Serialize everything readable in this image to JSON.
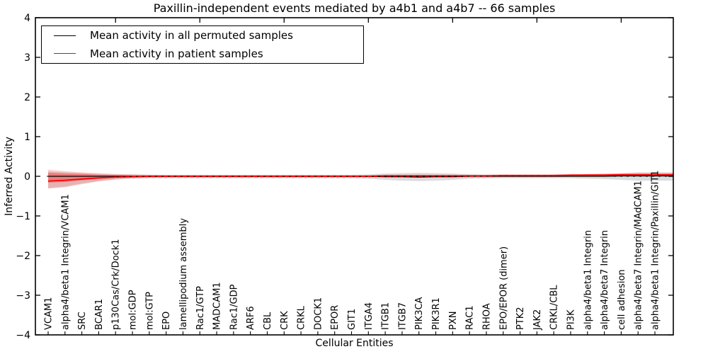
{
  "chart_data": {
    "type": "line",
    "title": "Paxillin-independent events mediated by a4b1 and a4b7 -- 66 samples",
    "xlabel": "Cellular Entities",
    "ylabel": "Inferred Activity",
    "ylim": [
      -4,
      4
    ],
    "yticks": [
      -4,
      -3,
      -2,
      -1,
      0,
      1,
      2,
      3,
      4
    ],
    "xticks_major": [
      5,
      10,
      15,
      20,
      25,
      30,
      35
    ],
    "grid": false,
    "legend_position": "upper left",
    "categories": [
      "VCAM1",
      "alpha4/beta1 Integrin/VCAM1",
      "SRC",
      "BCAR1",
      "p130Cas/Crk/Dock1",
      "mol:GDP",
      "mol:GTP",
      "EPO",
      "lamellipodium assembly",
      "Rac1/GTP",
      "MADCAM1",
      "Rac1/GDP",
      "ARF6",
      "CBL",
      "CRK",
      "CRKL",
      "DOCK1",
      "EPOR",
      "GIT1",
      "ITGA4",
      "ITGB1",
      "ITGB7",
      "PIK3CA",
      "PIK3R1",
      "PXN",
      "RAC1",
      "RHOA",
      "EPO/EPOR (dimer)",
      "PTK2",
      "JAK2",
      "CRKL/CBL",
      "PI3K",
      "alpha4/beta1 Integrin",
      "alpha4/beta7 Integrin",
      "cell adhesion",
      "alpha4/beta7 Integrin/MAdCAM1",
      "alpha4/beta1 Integrin/Paxillin/GIT1"
    ],
    "legend": [
      {
        "label": "Mean activity in all permuted samples",
        "color": "#000000"
      },
      {
        "label": "Mean activity in patient samples",
        "color": "#ff0000"
      }
    ],
    "series": [
      {
        "name": "Mean activity in all permuted samples",
        "color": "#000000",
        "values": [
          0,
          0,
          0,
          0,
          0,
          0,
          0,
          0,
          0,
          0,
          0,
          0,
          0,
          0,
          0,
          0,
          0,
          0,
          0,
          0,
          -0.01,
          -0.01,
          -0.02,
          -0.01,
          -0.01,
          0,
          0,
          0,
          0,
          0,
          0,
          0,
          0,
          0,
          0.01,
          0.01,
          0.01
        ]
      },
      {
        "name": "Mean activity in patient samples",
        "color": "#ff0000",
        "values": [
          -0.12,
          -0.1,
          -0.07,
          -0.04,
          -0.02,
          -0.01,
          0,
          0,
          0,
          0,
          0,
          0,
          0,
          0,
          0,
          0,
          0,
          0,
          0,
          0,
          0.01,
          0.01,
          0.01,
          0.01,
          0.01,
          0.01,
          0.01,
          0.02,
          0.02,
          0.02,
          0.02,
          0.03,
          0.03,
          0.03,
          0.04,
          0.04,
          0.04
        ]
      }
    ],
    "bands": [
      {
        "name": "permuted-std-band",
        "color": "#8c8c8c",
        "opacity": 0.3,
        "upper": [
          0.12,
          0.1,
          0.08,
          0.06,
          0.05,
          0.05,
          0.04,
          0.04,
          0.04,
          0.04,
          0.04,
          0.04,
          0.04,
          0.04,
          0.04,
          0.04,
          0.04,
          0.04,
          0.04,
          0.05,
          0.07,
          0.08,
          0.09,
          0.08,
          0.07,
          0.05,
          0.04,
          0.04,
          0.04,
          0.04,
          0.04,
          0.04,
          0.05,
          0.06,
          0.08,
          0.1,
          0.1
        ],
        "lower": [
          -0.3,
          -0.26,
          -0.18,
          -0.12,
          -0.08,
          -0.06,
          -0.05,
          -0.05,
          -0.05,
          -0.05,
          -0.05,
          -0.05,
          -0.05,
          -0.05,
          -0.05,
          -0.05,
          -0.05,
          -0.05,
          -0.05,
          -0.06,
          -0.09,
          -0.11,
          -0.12,
          -0.11,
          -0.09,
          -0.06,
          -0.05,
          -0.05,
          -0.05,
          -0.05,
          -0.05,
          -0.05,
          -0.06,
          -0.07,
          -0.09,
          -0.11,
          -0.11
        ]
      },
      {
        "name": "patient-std-outer-band",
        "color": "#ff0000",
        "opacity": 0.18,
        "upper": [
          0.17,
          0.13,
          0.1,
          0.08,
          0.06,
          0.05,
          0.04,
          0.03,
          0.03,
          0.03,
          0.03,
          0.03,
          0.03,
          0.03,
          0.03,
          0.03,
          0.03,
          0.03,
          0.03,
          0.03,
          0.04,
          0.04,
          0.04,
          0.04,
          0.04,
          0.04,
          0.04,
          0.05,
          0.05,
          0.05,
          0.05,
          0.05,
          0.06,
          0.07,
          0.07,
          0.08,
          0.08
        ],
        "lower": [
          -0.31,
          -0.28,
          -0.2,
          -0.13,
          -0.08,
          -0.05,
          -0.04,
          -0.03,
          -0.03,
          -0.03,
          -0.03,
          -0.03,
          -0.03,
          -0.03,
          -0.03,
          -0.03,
          -0.03,
          -0.03,
          -0.03,
          -0.03,
          -0.03,
          -0.03,
          -0.03,
          -0.03,
          -0.03,
          -0.03,
          -0.03,
          -0.02,
          -0.02,
          -0.02,
          -0.02,
          -0.01,
          -0.01,
          -0.01,
          0,
          0,
          0
        ]
      },
      {
        "name": "patient-std-inner-band",
        "color": "#ff0000",
        "opacity": 0.3,
        "upper": [
          0.09,
          0.07,
          0.06,
          0.04,
          0.03,
          0.02,
          0.02,
          0.02,
          0.02,
          0.02,
          0.02,
          0.02,
          0.02,
          0.02,
          0.02,
          0.02,
          0.02,
          0.02,
          0.02,
          0.02,
          0.03,
          0.03,
          0.03,
          0.03,
          0.03,
          0.03,
          0.03,
          0.03,
          0.03,
          0.03,
          0.04,
          0.04,
          0.05,
          0.05,
          0.06,
          0.06,
          0.06
        ],
        "lower": [
          -0.16,
          -0.14,
          -0.1,
          -0.07,
          -0.04,
          -0.03,
          -0.02,
          -0.02,
          -0.02,
          -0.02,
          -0.02,
          -0.02,
          -0.02,
          -0.02,
          -0.02,
          -0.02,
          -0.02,
          -0.02,
          -0.02,
          -0.02,
          -0.01,
          -0.01,
          -0.01,
          -0.01,
          -0.01,
          -0.01,
          -0.01,
          -0.01,
          -0.01,
          0,
          0,
          0,
          0,
          0,
          0.01,
          0.01,
          0.01
        ]
      }
    ],
    "zero_line": {
      "value": 0,
      "style": "dashed",
      "color": "#000000"
    }
  }
}
